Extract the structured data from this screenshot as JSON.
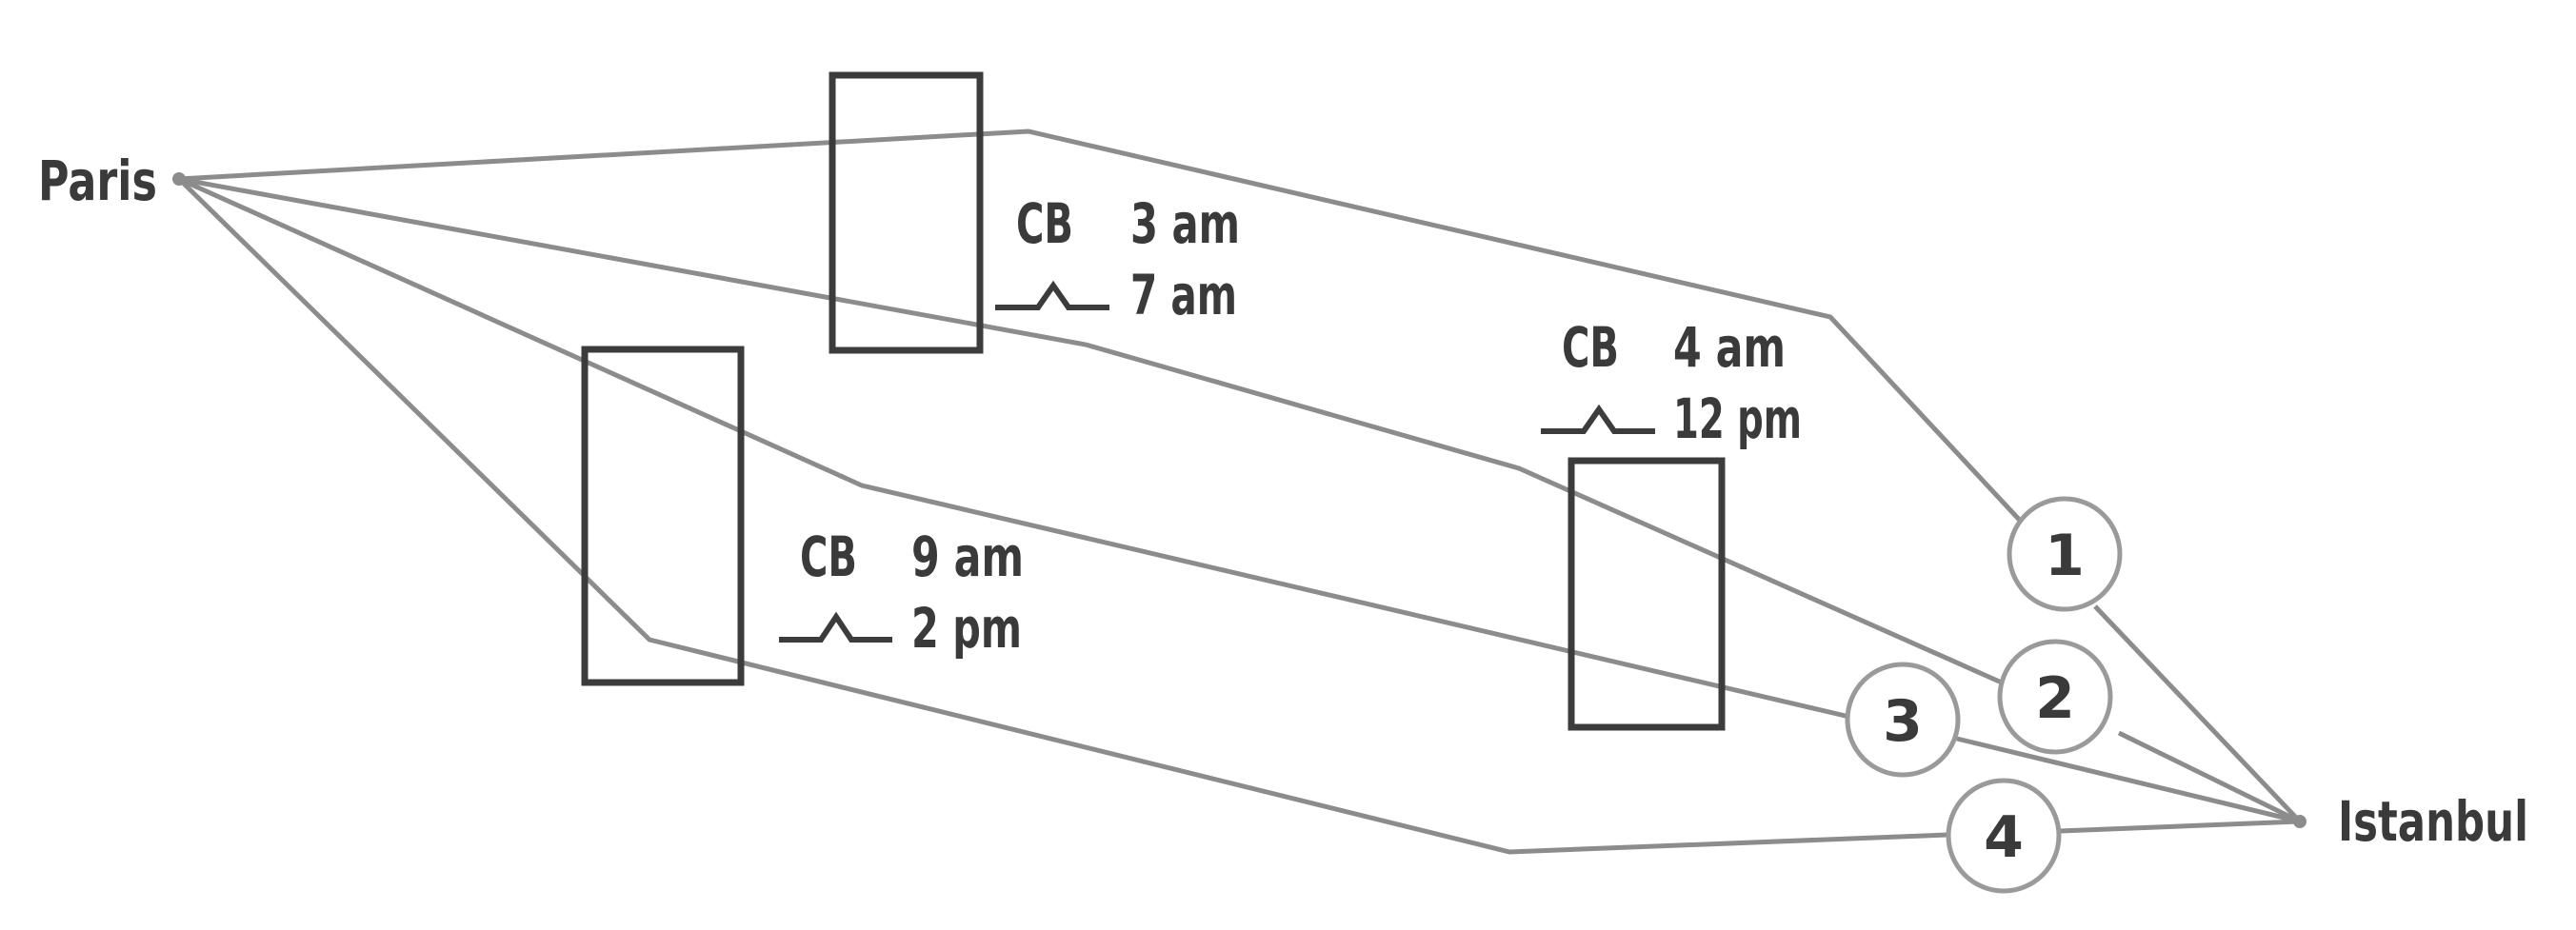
{
  "cities": {
    "origin": "Paris",
    "destination": "Istanbul"
  },
  "windows": [
    {
      "label": "CB",
      "start": "3 am",
      "end": "7 am"
    },
    {
      "label": "CB",
      "start": "9 am",
      "end": "2 pm"
    },
    {
      "label": "CB",
      "start": "4 am",
      "end": "12 pm"
    }
  ],
  "routes": [
    {
      "number": "1"
    },
    {
      "number": "2"
    },
    {
      "number": "3"
    },
    {
      "number": "4"
    }
  ],
  "colors": {
    "route_line": "#8c8c8c",
    "box_stroke": "#3c3c3c",
    "text": "#3a3a3a"
  }
}
